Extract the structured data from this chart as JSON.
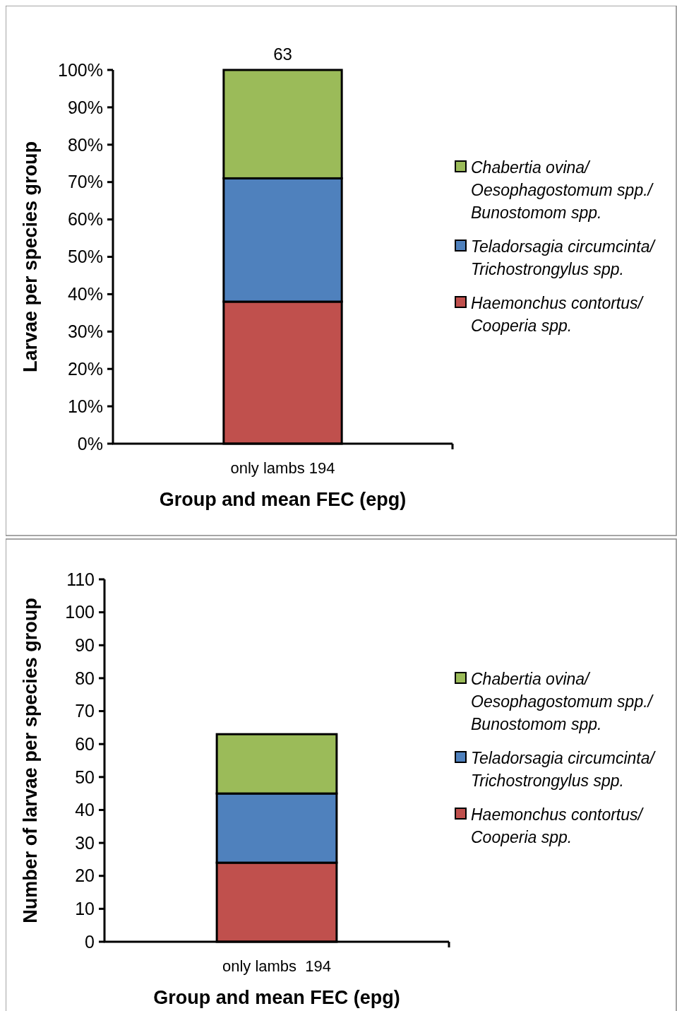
{
  "chart_data": [
    {
      "type": "bar",
      "stacked": true,
      "categories": [
        "only lambs 194"
      ],
      "xlabel": "Group and mean FEC (epg)",
      "ylabel": "Larvae per species group",
      "ylim": [
        0,
        100
      ],
      "yticks": [
        {
          "value": 0,
          "label": "0%"
        },
        {
          "value": 10,
          "label": "10%"
        },
        {
          "value": 20,
          "label": "20%"
        },
        {
          "value": 30,
          "label": "30%"
        },
        {
          "value": 40,
          "label": "40%"
        },
        {
          "value": 50,
          "label": "50%"
        },
        {
          "value": 60,
          "label": "60%"
        },
        {
          "value": 70,
          "label": "70%"
        },
        {
          "value": 80,
          "label": "80%"
        },
        {
          "value": 90,
          "label": "90%"
        },
        {
          "value": 100,
          "label": "100%"
        }
      ],
      "annotations": [
        {
          "text": "63",
          "y": 100
        }
      ],
      "legend": "right",
      "series": [
        {
          "name": "Haemonchus contortus/ Cooperia spp.",
          "color": "#c0504d",
          "values": [
            38
          ]
        },
        {
          "name": "Teladorsagia circumcinta/ Trichostrongylus spp.",
          "color": "#4f81bd",
          "values": [
            33
          ]
        },
        {
          "name": "Chabertia ovina/ Oesophagostomum spp./ Bunostomom spp.",
          "color": "#9bbb59",
          "values": [
            29
          ]
        }
      ]
    },
    {
      "type": "bar",
      "stacked": true,
      "categories": [
        "only lambs  194"
      ],
      "xlabel": "Group and mean FEC (epg)",
      "ylabel": "Number of larvae per species group",
      "ylim": [
        0,
        110
      ],
      "yticks": [
        0,
        10,
        20,
        30,
        40,
        50,
        60,
        70,
        80,
        90,
        100,
        110
      ],
      "legend": "right",
      "series": [
        {
          "name": "Haemonchus contortus/ Cooperia spp.",
          "color": "#c0504d",
          "values": [
            24
          ]
        },
        {
          "name": "Teladorsagia circumcinta/ Trichostrongylus spp.",
          "color": "#4f81bd",
          "values": [
            21
          ]
        },
        {
          "name": "Chabertia ovina/ Oesophagostomum spp./ Bunostomom spp.",
          "color": "#9bbb59",
          "values": [
            18
          ]
        }
      ]
    }
  ]
}
